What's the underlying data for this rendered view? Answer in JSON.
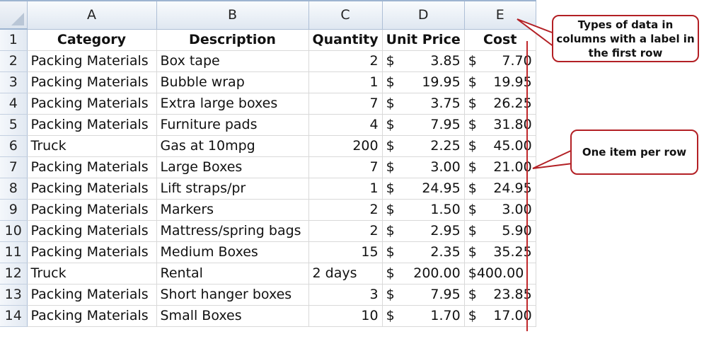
{
  "sheet": {
    "column_headers": [
      "A",
      "B",
      "C",
      "D",
      "E"
    ],
    "header_row": {
      "row_number": "1",
      "category": "Category",
      "description": "Description",
      "quantity": "Quantity",
      "unit_price": "Unit Price",
      "cost": "Cost"
    },
    "rows": [
      {
        "n": "2",
        "category": "Packing Materials",
        "description": "Box tape",
        "quantity": "2",
        "unit_price": "3.85",
        "cost": "7.70"
      },
      {
        "n": "3",
        "category": "Packing Materials",
        "description": "Bubble wrap",
        "quantity": "1",
        "unit_price": "19.95",
        "cost": "19.95"
      },
      {
        "n": "4",
        "category": "Packing Materials",
        "description": "Extra large boxes",
        "quantity": "7",
        "unit_price": "3.75",
        "cost": "26.25"
      },
      {
        "n": "5",
        "category": "Packing Materials",
        "description": "Furniture pads",
        "quantity": "4",
        "unit_price": "7.95",
        "cost": "31.80"
      },
      {
        "n": "6",
        "category": "Truck",
        "description": "Gas at 10mpg",
        "quantity": "200",
        "unit_price": "2.25",
        "cost": "45.00"
      },
      {
        "n": "7",
        "category": "Packing Materials",
        "description": "Large Boxes",
        "quantity": "7",
        "unit_price": "3.00",
        "cost": "21.00"
      },
      {
        "n": "8",
        "category": "Packing Materials",
        "description": "Lift straps/pr",
        "quantity": "1",
        "unit_price": "24.95",
        "cost": "24.95"
      },
      {
        "n": "9",
        "category": "Packing Materials",
        "description": "Markers",
        "quantity": "2",
        "unit_price": "1.50",
        "cost": "3.00"
      },
      {
        "n": "10",
        "category": "Packing Materials",
        "description": "Mattress/spring bags",
        "quantity": "2",
        "unit_price": "2.95",
        "cost": "5.90"
      },
      {
        "n": "11",
        "category": "Packing Materials",
        "description": "Medium Boxes",
        "quantity": "15",
        "unit_price": "2.35",
        "cost": "35.25"
      },
      {
        "n": "12",
        "category": "Truck",
        "description": "Rental",
        "quantity": "2 days",
        "unit_price": "200.00",
        "cost": "400.00"
      },
      {
        "n": "13",
        "category": "Packing Materials",
        "description": "Short hanger boxes",
        "quantity": "3",
        "unit_price": "7.95",
        "cost": "23.85"
      },
      {
        "n": "14",
        "category": "Packing Materials",
        "description": "Small Boxes",
        "quantity": "10",
        "unit_price": "1.70",
        "cost": "17.00"
      }
    ],
    "currency_symbol": "$"
  },
  "annotations": {
    "columns_callout": "Types of data in columns with a label in the first row",
    "rows_callout": "One item per row"
  },
  "colors": {
    "annotation_red": "#c0282b",
    "header_blue": "#dfe7f1"
  }
}
